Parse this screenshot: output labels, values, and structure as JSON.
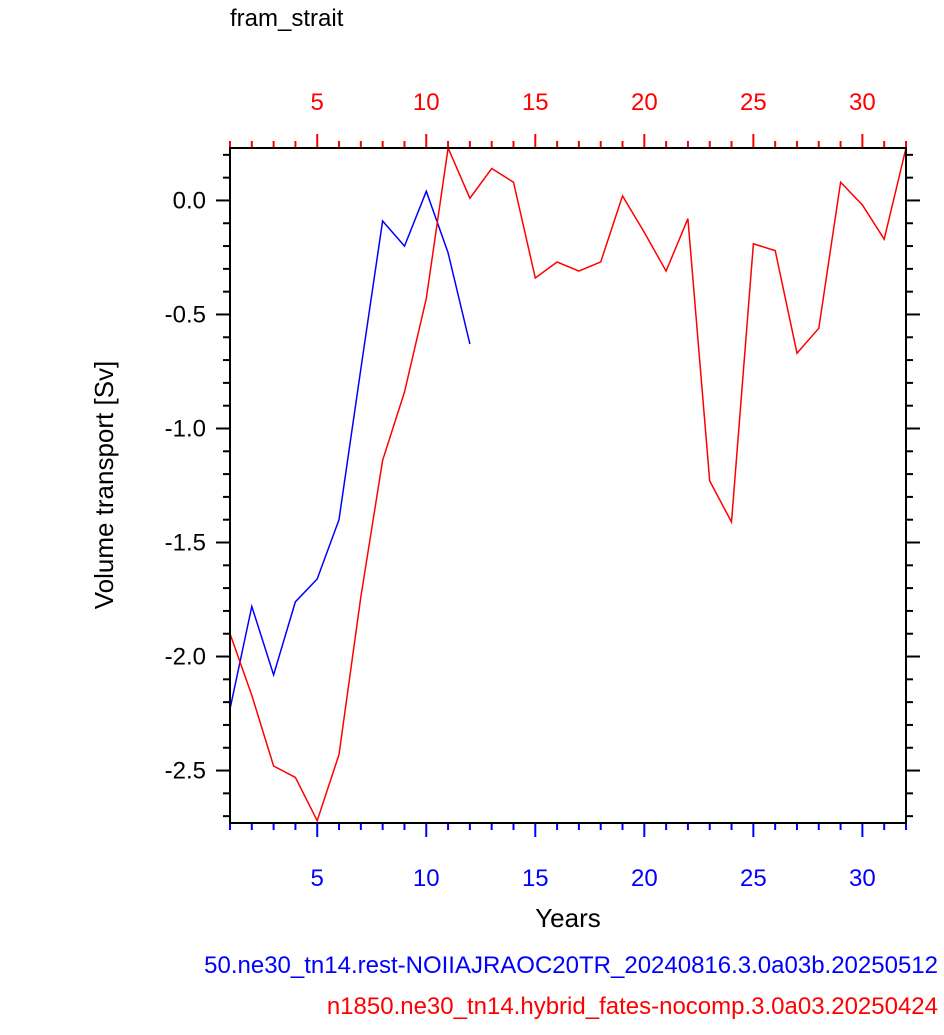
{
  "chart_data": {
    "type": "line",
    "title": "fram_strait",
    "xlabel": "Years",
    "ylabel": "Volume transport [Sv]",
    "xlim": [
      1,
      32
    ],
    "ylim": [
      -2.73,
      0.23
    ],
    "x_ticks": [
      5,
      10,
      15,
      20,
      25,
      30
    ],
    "y_ticks": [
      0.0,
      -0.5,
      -1.0,
      -1.5,
      -2.0,
      -2.5
    ],
    "y_tick_labels": [
      "0.0",
      "-0.5",
      "-1.0",
      "-1.5",
      "-2.0",
      "-2.5"
    ],
    "grid": false,
    "series": [
      {
        "name": "50.ne30_tn14.rest-NOIIAJRAOC20TR_20240816.3.0a03b.20250512",
        "color": "#0000ff",
        "axis": "bottom",
        "x": [
          1,
          2,
          3,
          4,
          5,
          6,
          7,
          8,
          9,
          10,
          11,
          12
        ],
        "y": [
          -2.23,
          -1.78,
          -2.08,
          -1.76,
          -1.66,
          -1.4,
          -0.74,
          -0.09,
          -0.2,
          0.04,
          -0.23,
          -0.63
        ]
      },
      {
        "name": "n1850.ne30_tn14.hybrid_fates-nocomp.3.0a03.20250424",
        "color": "#ff0000",
        "axis": "top",
        "x": [
          1,
          2,
          3,
          4,
          5,
          6,
          7,
          8,
          9,
          10,
          11,
          12,
          13,
          14,
          15,
          16,
          17,
          18,
          19,
          20,
          21,
          22,
          23,
          24,
          25,
          26,
          27,
          28,
          29,
          30,
          31,
          32
        ],
        "y": [
          -1.9,
          -2.17,
          -2.48,
          -2.53,
          -2.72,
          -2.43,
          -1.74,
          -1.14,
          -0.84,
          -0.43,
          0.23,
          0.01,
          0.14,
          0.08,
          -0.34,
          -0.27,
          -0.31,
          -0.27,
          0.02,
          -0.14,
          -0.31,
          -0.08,
          -1.23,
          -1.41,
          -0.19,
          -0.22,
          -0.67,
          -0.56,
          0.08,
          -0.02,
          -0.17,
          0.23
        ]
      }
    ]
  }
}
